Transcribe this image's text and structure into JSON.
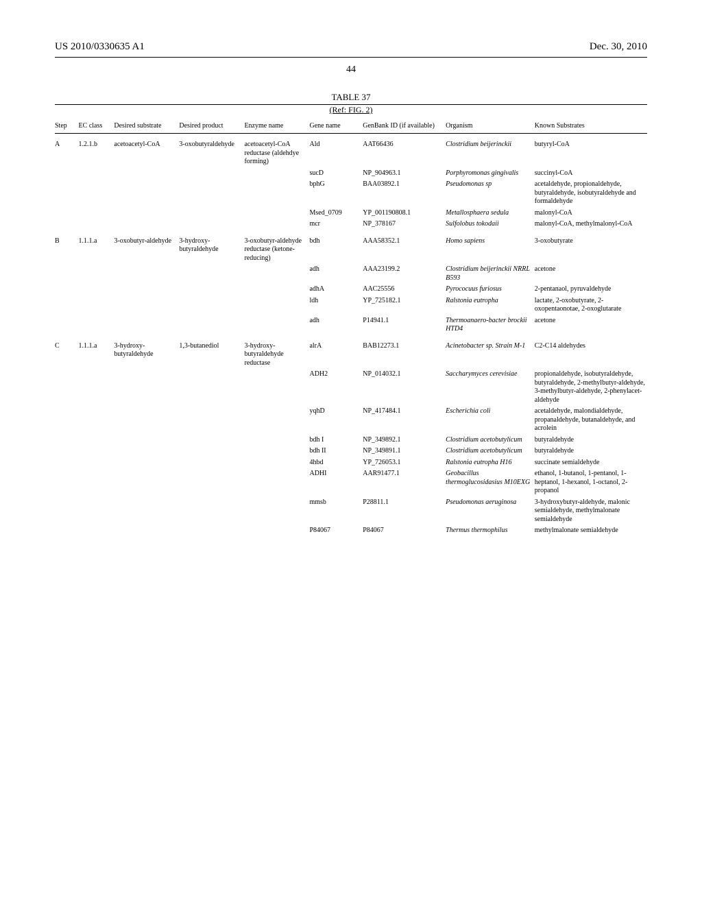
{
  "header": {
    "pub_number": "US 2010/0330635 A1",
    "pub_date": "Dec. 30, 2010",
    "page_number": "44"
  },
  "table": {
    "caption": "TABLE 37",
    "subcaption": "(Ref: FIG. 2)",
    "columns": [
      "Step",
      "EC class",
      "Desired substrate",
      "Desired product",
      "Enzyme name",
      "Gene name",
      "GenBank ID (if available)",
      "Organism",
      "Known Substrates"
    ],
    "rows": [
      {
        "step": "A",
        "ec": "1.2.1.b",
        "sub": "acetoacetyl-CoA",
        "prod": "3-oxobutyraldehyde",
        "enz": "acetoacetyl-CoA reductase (aldehdye forming)",
        "gene": "Ald",
        "gb": "AAT66436",
        "org": "Clostridium beijerinckii",
        "ks": "butyryl-CoA"
      },
      {
        "step": "",
        "ec": "",
        "sub": "",
        "prod": "",
        "enz": "",
        "gene": "sucD",
        "gb": "NP_904963.1",
        "org": "Porphyromonas gingivalis",
        "ks": "succinyl-CoA"
      },
      {
        "step": "",
        "ec": "",
        "sub": "",
        "prod": "",
        "enz": "",
        "gene": "bphG",
        "gb": "BAA03892.1",
        "org": "Pseudomonas sp",
        "ks": "acetaldehyde, propionaldehyde, butyraldehyde, isobutyraldehyde and formaldehyde"
      },
      {
        "step": "",
        "ec": "",
        "sub": "",
        "prod": "",
        "enz": "",
        "gene": "Msed_0709",
        "gb": "YP_001190808.1",
        "org": "Metallosphaera sedula",
        "ks": "malonyl-CoA"
      },
      {
        "step": "",
        "ec": "",
        "sub": "",
        "prod": "",
        "enz": "",
        "gene": "mcr",
        "gb": "NP_378167",
        "org": "Sulfolobus tokodaii",
        "ks": "malonyl-CoA, methylmalonyl-CoA"
      },
      {
        "step": "B",
        "ec": "1.1.1.a",
        "sub": "3-oxobutyr-aldehyde",
        "prod": "3-hydroxy-butyraldehyde",
        "enz": "3-oxobutyr-aldehyde reductase (ketone-reducing)",
        "gene": "bdh",
        "gb": "AAA58352.1",
        "org": "Homo sapiens",
        "ks": "3-oxobutyrate"
      },
      {
        "step": "",
        "ec": "",
        "sub": "",
        "prod": "",
        "enz": "",
        "gene": "adh",
        "gb": "AAA23199.2",
        "org": "Clostridium beijerinckii NRRL B593",
        "ks": "acetone"
      },
      {
        "step": "",
        "ec": "",
        "sub": "",
        "prod": "",
        "enz": "",
        "gene": "adhA",
        "gb": "AAC25556",
        "org": "Pyrococuus furiosus",
        "ks": "2-pentanaol, pyruvaldehyde"
      },
      {
        "step": "",
        "ec": "",
        "sub": "",
        "prod": "",
        "enz": "",
        "gene": "ldh",
        "gb": "YP_725182.1",
        "org": "Ralstonia eutropha",
        "ks": "lactate, 2-oxobutyrate, 2-oxopentaonotae, 2-oxoglutarate"
      },
      {
        "step": "",
        "ec": "",
        "sub": "",
        "prod": "",
        "enz": "",
        "gene": "adh",
        "gb": "P14941.1",
        "org": "Thermoanaero-bacter brockii HTD4",
        "ks": "acetone"
      },
      {
        "step": "C",
        "ec": "1.1.1.a",
        "sub": "3-hydroxy-butyraldehyde",
        "prod": "1,3-butanediol",
        "enz": "3-hydroxy-butyraldehyde reductase",
        "gene": "alrA",
        "gb": "BAB12273.1",
        "org": "Acinetobacter sp. Strain M-1",
        "ks": "C2-C14 aldehydes"
      },
      {
        "step": "",
        "ec": "",
        "sub": "",
        "prod": "",
        "enz": "",
        "gene": "ADH2",
        "gb": "NP_014032.1",
        "org": "Saccharymyces cerevisiae",
        "ks": "propionaldehyde, isobutyraldehyde, butyraldehyde, 2-methylbutyr-aldehyde, 3-methylbutyr-aldehyde, 2-phenylacet-aldehyde"
      },
      {
        "step": "",
        "ec": "",
        "sub": "",
        "prod": "",
        "enz": "",
        "gene": "yqhD",
        "gb": "NP_417484.1",
        "org": "Escherichia coli",
        "ks": "acetaldehyde, malondialdehyde, propanaldehyde, butanaldehyde, and acrolein"
      },
      {
        "step": "",
        "ec": "",
        "sub": "",
        "prod": "",
        "enz": "",
        "gene": "bdh I",
        "gb": "NP_349892.1",
        "org": "Clostridium acetobutylicum",
        "ks": "butyraldehyde"
      },
      {
        "step": "",
        "ec": "",
        "sub": "",
        "prod": "",
        "enz": "",
        "gene": "bdh II",
        "gb": "NP_349891.1",
        "org": "Clostridium acetobutylicum",
        "ks": "butyraldehyde"
      },
      {
        "step": "",
        "ec": "",
        "sub": "",
        "prod": "",
        "enz": "",
        "gene": "4hbd",
        "gb": "YP_726053.1",
        "org": "Ralstonia eutropha H16",
        "ks": "succinate semialdehyde"
      },
      {
        "step": "",
        "ec": "",
        "sub": "",
        "prod": "",
        "enz": "",
        "gene": "ADHI",
        "gb": "AAR91477.1",
        "org": "Geobacillus thermoglucosidasius M10EXG",
        "ks": "ethanol, 1-butanol, 1-pentanol, 1-heptanol, 1-hexanol, 1-octanol, 2-propanol"
      },
      {
        "step": "",
        "ec": "",
        "sub": "",
        "prod": "",
        "enz": "",
        "gene": "mmsb",
        "gb": "P28811.1",
        "org": "Pseudomonas aeruginosa",
        "ks": "3-hydroxybutyr-aldehyde, malonic semialdehyde, methylmalonate semialdehyde"
      },
      {
        "step": "",
        "ec": "",
        "sub": "",
        "prod": "",
        "enz": "",
        "gene": "P84067",
        "gb": "P84067",
        "org": "Thermus thermophilus",
        "ks": "methylmalonate semialdehyde"
      }
    ]
  }
}
